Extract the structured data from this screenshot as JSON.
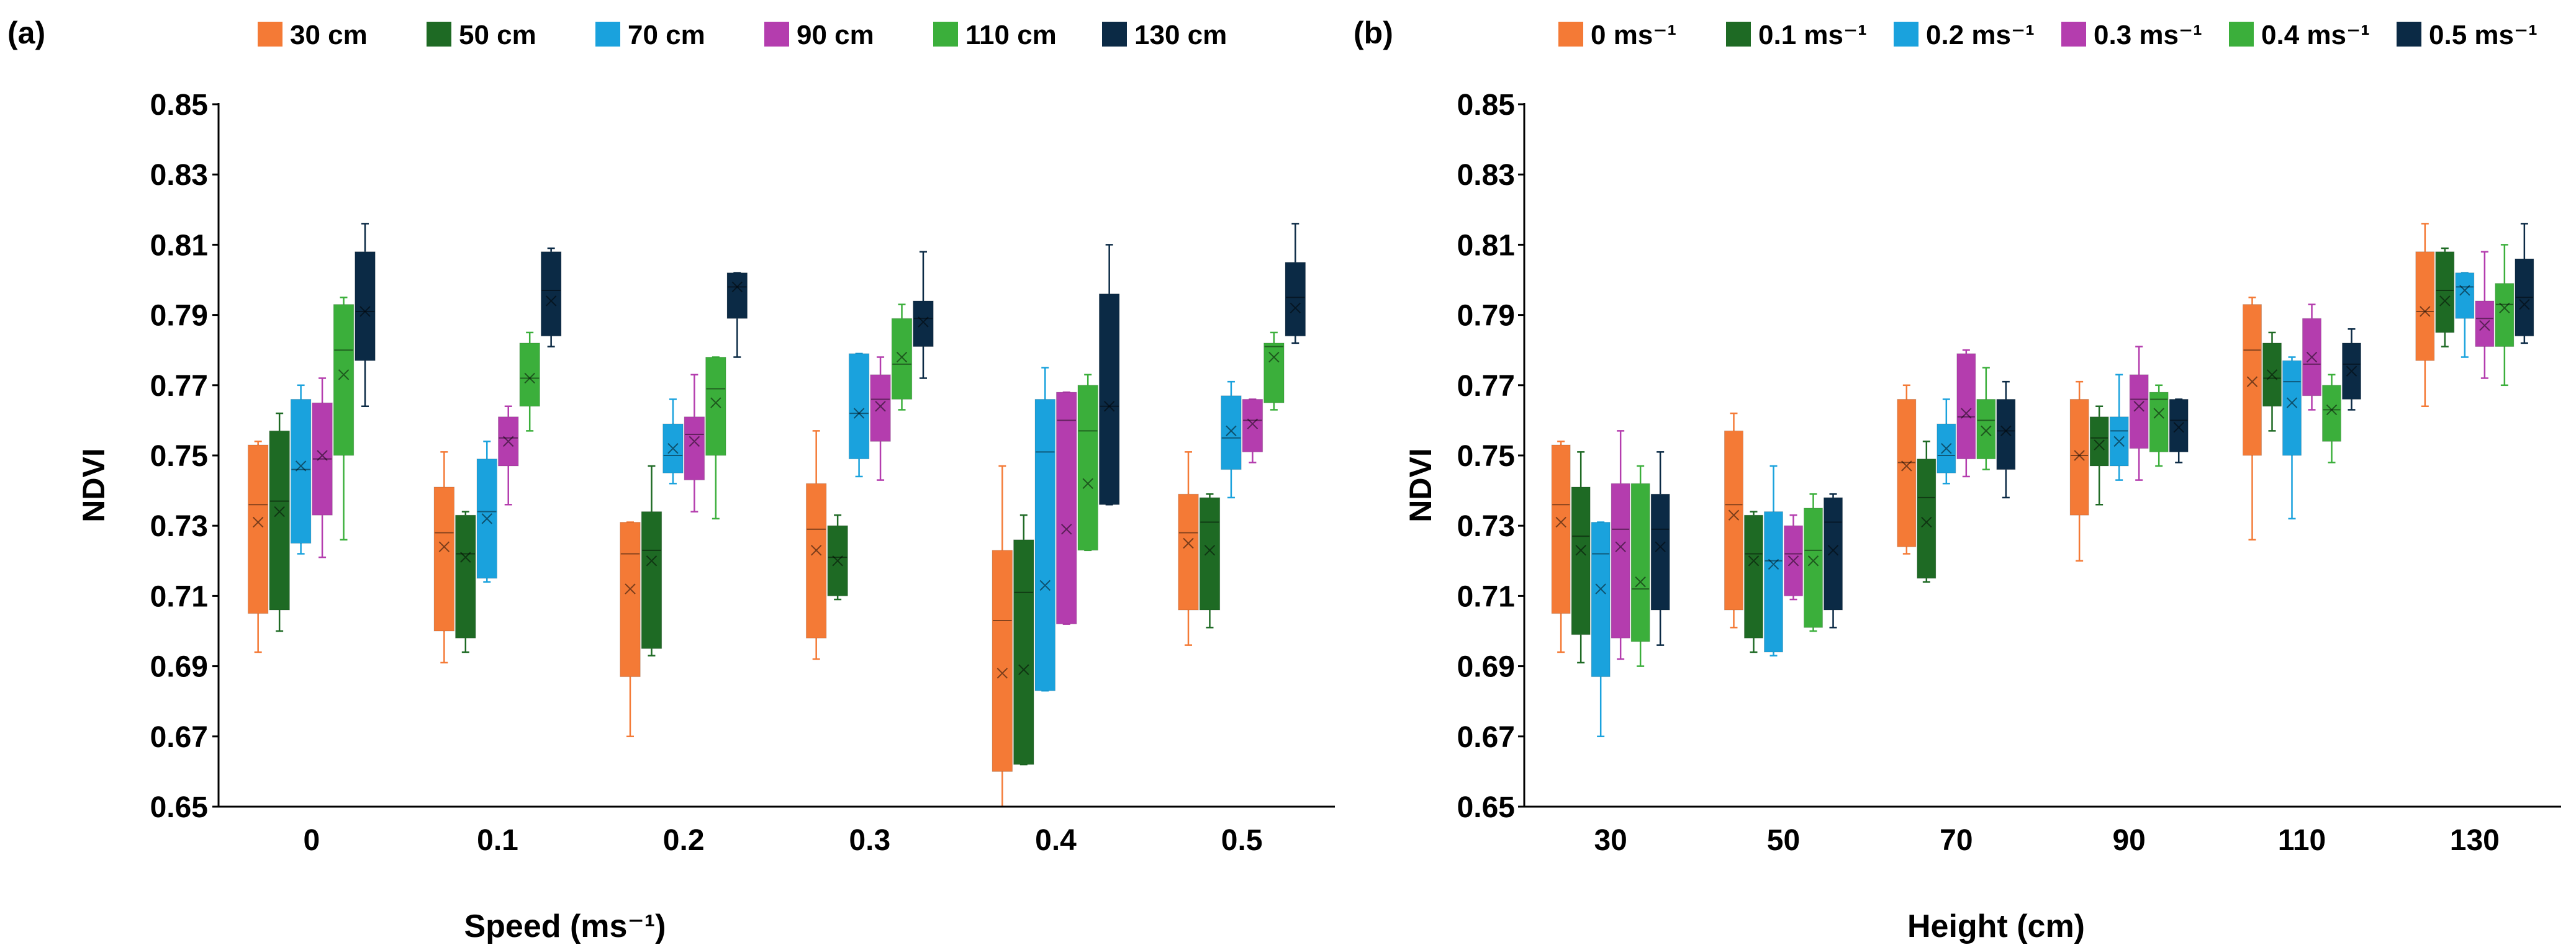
{
  "chart_data": [
    {
      "panel_label": "(a)",
      "type": "box",
      "xlabel": "Speed (ms⁻¹)",
      "ylabel": "NDVI",
      "ylim": [
        0.65,
        0.85
      ],
      "yticks": [
        "0.65",
        "0.67",
        "0.69",
        "0.71",
        "0.73",
        "0.75",
        "0.77",
        "0.79",
        "0.81",
        "0.83",
        "0.85"
      ],
      "categories": [
        "0",
        "0.1",
        "0.2",
        "0.3",
        "0.4",
        "0.5"
      ],
      "legend_position": "top",
      "series": [
        {
          "name": "30 cm",
          "color": "#F47A36",
          "boxes": [
            {
              "min": 0.694,
              "q1": 0.705,
              "median": 0.736,
              "mean": 0.731,
              "q3": 0.753,
              "max": 0.754
            },
            {
              "min": 0.691,
              "q1": 0.7,
              "median": 0.728,
              "mean": 0.724,
              "q3": 0.741,
              "max": 0.751
            },
            {
              "min": 0.67,
              "q1": 0.687,
              "median": 0.722,
              "mean": 0.712,
              "q3": 0.731,
              "max": 0.731
            },
            {
              "min": 0.692,
              "q1": 0.698,
              "median": 0.729,
              "mean": 0.723,
              "q3": 0.742,
              "max": 0.757
            },
            {
              "min": 0.65,
              "q1": 0.66,
              "median": 0.703,
              "mean": 0.688,
              "q3": 0.723,
              "max": 0.747
            },
            {
              "min": 0.696,
              "q1": 0.706,
              "median": 0.728,
              "mean": 0.725,
              "q3": 0.739,
              "max": 0.751
            }
          ]
        },
        {
          "name": "50 cm",
          "color": "#1E6A24",
          "boxes": [
            {
              "min": 0.7,
              "q1": 0.706,
              "median": 0.737,
              "mean": 0.734,
              "q3": 0.757,
              "max": 0.762
            },
            {
              "min": 0.694,
              "q1": 0.698,
              "median": 0.722,
              "mean": 0.721,
              "q3": 0.733,
              "max": 0.734
            },
            {
              "min": 0.693,
              "q1": 0.695,
              "median": 0.723,
              "mean": 0.72,
              "q3": 0.734,
              "max": 0.747
            },
            {
              "min": 0.709,
              "q1": 0.71,
              "median": 0.721,
              "mean": 0.72,
              "q3": 0.73,
              "max": 0.733
            },
            {
              "min": 0.662,
              "q1": 0.662,
              "median": 0.711,
              "mean": 0.689,
              "q3": 0.726,
              "max": 0.733
            },
            {
              "min": 0.701,
              "q1": 0.706,
              "median": 0.731,
              "mean": 0.723,
              "q3": 0.738,
              "max": 0.739
            }
          ]
        },
        {
          "name": "70 cm",
          "color": "#1AA2DD",
          "boxes": [
            {
              "min": 0.722,
              "q1": 0.725,
              "median": 0.746,
              "mean": 0.747,
              "q3": 0.766,
              "max": 0.77
            },
            {
              "min": 0.714,
              "q1": 0.715,
              "median": 0.734,
              "mean": 0.732,
              "q3": 0.749,
              "max": 0.754
            },
            {
              "min": 0.742,
              "q1": 0.745,
              "median": 0.75,
              "mean": 0.752,
              "q3": 0.759,
              "max": 0.766
            },
            {
              "min": 0.744,
              "q1": 0.749,
              "median": 0.762,
              "mean": 0.762,
              "q3": 0.779,
              "max": 0.779
            },
            {
              "min": 0.683,
              "q1": 0.683,
              "median": 0.751,
              "mean": 0.713,
              "q3": 0.766,
              "max": 0.775
            },
            {
              "min": 0.738,
              "q1": 0.746,
              "median": 0.755,
              "mean": 0.757,
              "q3": 0.767,
              "max": 0.771
            }
          ]
        },
        {
          "name": "90 cm",
          "color": "#B43DAE",
          "boxes": [
            {
              "min": 0.721,
              "q1": 0.733,
              "median": 0.749,
              "mean": 0.75,
              "q3": 0.765,
              "max": 0.772
            },
            {
              "min": 0.736,
              "q1": 0.747,
              "median": 0.755,
              "mean": 0.754,
              "q3": 0.761,
              "max": 0.764
            },
            {
              "min": 0.734,
              "q1": 0.743,
              "median": 0.756,
              "mean": 0.754,
              "q3": 0.761,
              "max": 0.773
            },
            {
              "min": 0.743,
              "q1": 0.754,
              "median": 0.766,
              "mean": 0.764,
              "q3": 0.773,
              "max": 0.778
            },
            {
              "min": 0.702,
              "q1": 0.702,
              "median": 0.76,
              "mean": 0.729,
              "q3": 0.768,
              "max": 0.768
            },
            {
              "min": 0.748,
              "q1": 0.751,
              "median": 0.76,
              "mean": 0.759,
              "q3": 0.766,
              "max": 0.766
            }
          ]
        },
        {
          "name": "110 cm",
          "color": "#3BAF3B",
          "boxes": [
            {
              "min": 0.726,
              "q1": 0.75,
              "median": 0.78,
              "mean": 0.773,
              "q3": 0.793,
              "max": 0.795
            },
            {
              "min": 0.757,
              "q1": 0.764,
              "median": 0.772,
              "mean": 0.772,
              "q3": 0.782,
              "max": 0.785
            },
            {
              "min": 0.732,
              "q1": 0.75,
              "median": 0.769,
              "mean": 0.765,
              "q3": 0.778,
              "max": 0.778
            },
            {
              "min": 0.763,
              "q1": 0.766,
              "median": 0.776,
              "mean": 0.778,
              "q3": 0.789,
              "max": 0.793
            },
            {
              "min": 0.723,
              "q1": 0.723,
              "median": 0.757,
              "mean": 0.742,
              "q3": 0.77,
              "max": 0.773
            },
            {
              "min": 0.763,
              "q1": 0.765,
              "median": 0.781,
              "mean": 0.778,
              "q3": 0.782,
              "max": 0.785
            }
          ]
        },
        {
          "name": "130 cm",
          "color": "#0B2A45",
          "boxes": [
            {
              "min": 0.764,
              "q1": 0.777,
              "median": 0.791,
              "mean": 0.791,
              "q3": 0.808,
              "max": 0.816
            },
            {
              "min": 0.781,
              "q1": 0.784,
              "median": 0.797,
              "mean": 0.794,
              "q3": 0.808,
              "max": 0.809
            },
            {
              "min": 0.778,
              "q1": 0.789,
              "median": 0.798,
              "mean": 0.798,
              "q3": 0.802,
              "max": 0.802
            },
            {
              "min": 0.772,
              "q1": 0.781,
              "median": 0.789,
              "mean": 0.788,
              "q3": 0.794,
              "max": 0.808
            },
            {
              "min": 0.736,
              "q1": 0.736,
              "median": 0.764,
              "mean": 0.764,
              "q3": 0.796,
              "max": 0.81
            },
            {
              "min": 0.782,
              "q1": 0.784,
              "median": 0.795,
              "mean": 0.792,
              "q3": 0.805,
              "max": 0.816
            }
          ]
        }
      ]
    },
    {
      "panel_label": "(b)",
      "type": "box",
      "xlabel": "Height (cm)",
      "ylabel": "NDVI",
      "ylim": [
        0.65,
        0.85
      ],
      "yticks": [
        "0.65",
        "0.67",
        "0.69",
        "0.71",
        "0.73",
        "0.75",
        "0.77",
        "0.79",
        "0.81",
        "0.83",
        "0.85"
      ],
      "categories": [
        "30",
        "50",
        "70",
        "90",
        "110",
        "130"
      ],
      "legend_position": "top",
      "series": [
        {
          "name": "0 ms⁻¹",
          "color": "#F47A36",
          "boxes": [
            {
              "min": 0.694,
              "q1": 0.705,
              "median": 0.736,
              "mean": 0.731,
              "q3": 0.753,
              "max": 0.754
            },
            {
              "min": 0.701,
              "q1": 0.706,
              "median": 0.736,
              "mean": 0.733,
              "q3": 0.757,
              "max": 0.762
            },
            {
              "min": 0.722,
              "q1": 0.724,
              "median": 0.748,
              "mean": 0.747,
              "q3": 0.766,
              "max": 0.77
            },
            {
              "min": 0.72,
              "q1": 0.733,
              "median": 0.75,
              "mean": 0.75,
              "q3": 0.766,
              "max": 0.771
            },
            {
              "min": 0.726,
              "q1": 0.75,
              "median": 0.78,
              "mean": 0.771,
              "q3": 0.793,
              "max": 0.795
            },
            {
              "min": 0.764,
              "q1": 0.777,
              "median": 0.791,
              "mean": 0.791,
              "q3": 0.808,
              "max": 0.816
            }
          ]
        },
        {
          "name": "0.1 ms⁻¹",
          "color": "#1E6A24",
          "boxes": [
            {
              "min": 0.691,
              "q1": 0.699,
              "median": 0.727,
              "mean": 0.723,
              "q3": 0.741,
              "max": 0.751
            },
            {
              "min": 0.694,
              "q1": 0.698,
              "median": 0.722,
              "mean": 0.72,
              "q3": 0.733,
              "max": 0.734
            },
            {
              "min": 0.714,
              "q1": 0.715,
              "median": 0.738,
              "mean": 0.731,
              "q3": 0.749,
              "max": 0.754
            },
            {
              "min": 0.736,
              "q1": 0.747,
              "median": 0.755,
              "mean": 0.753,
              "q3": 0.761,
              "max": 0.764
            },
            {
              "min": 0.757,
              "q1": 0.764,
              "median": 0.772,
              "mean": 0.773,
              "q3": 0.782,
              "max": 0.785
            },
            {
              "min": 0.781,
              "q1": 0.785,
              "median": 0.797,
              "mean": 0.794,
              "q3": 0.808,
              "max": 0.809
            }
          ]
        },
        {
          "name": "0.2 ms⁻¹",
          "color": "#1AA2DD",
          "boxes": [
            {
              "min": 0.67,
              "q1": 0.687,
              "median": 0.722,
              "mean": 0.712,
              "q3": 0.731,
              "max": 0.731
            },
            {
              "min": 0.693,
              "q1": 0.694,
              "median": 0.72,
              "mean": 0.719,
              "q3": 0.734,
              "max": 0.747
            },
            {
              "min": 0.742,
              "q1": 0.745,
              "median": 0.75,
              "mean": 0.752,
              "q3": 0.759,
              "max": 0.766
            },
            {
              "min": 0.743,
              "q1": 0.747,
              "median": 0.757,
              "mean": 0.754,
              "q3": 0.761,
              "max": 0.773
            },
            {
              "min": 0.732,
              "q1": 0.75,
              "median": 0.771,
              "mean": 0.765,
              "q3": 0.777,
              "max": 0.778
            },
            {
              "min": 0.778,
              "q1": 0.789,
              "median": 0.798,
              "mean": 0.797,
              "q3": 0.802,
              "max": 0.802
            }
          ]
        },
        {
          "name": "0.3 ms⁻¹",
          "color": "#B43DAE",
          "boxes": [
            {
              "min": 0.692,
              "q1": 0.698,
              "median": 0.729,
              "mean": 0.724,
              "q3": 0.742,
              "max": 0.757
            },
            {
              "min": 0.709,
              "q1": 0.71,
              "median": 0.722,
              "mean": 0.72,
              "q3": 0.73,
              "max": 0.733
            },
            {
              "min": 0.744,
              "q1": 0.749,
              "median": 0.761,
              "mean": 0.762,
              "q3": 0.779,
              "max": 0.78
            },
            {
              "min": 0.743,
              "q1": 0.752,
              "median": 0.766,
              "mean": 0.764,
              "q3": 0.773,
              "max": 0.781
            },
            {
              "min": 0.763,
              "q1": 0.767,
              "median": 0.776,
              "mean": 0.778,
              "q3": 0.789,
              "max": 0.793
            },
            {
              "min": 0.772,
              "q1": 0.781,
              "median": 0.789,
              "mean": 0.787,
              "q3": 0.794,
              "max": 0.808
            }
          ]
        },
        {
          "name": "0.4 ms⁻¹",
          "color": "#3BAF3B",
          "boxes": [
            {
              "min": 0.69,
              "q1": 0.697,
              "median": 0.712,
              "mean": 0.714,
              "q3": 0.742,
              "max": 0.747
            },
            {
              "min": 0.7,
              "q1": 0.701,
              "median": 0.723,
              "mean": 0.72,
              "q3": 0.735,
              "max": 0.739
            },
            {
              "min": 0.746,
              "q1": 0.749,
              "median": 0.76,
              "mean": 0.757,
              "q3": 0.766,
              "max": 0.775
            },
            {
              "min": 0.747,
              "q1": 0.751,
              "median": 0.766,
              "mean": 0.762,
              "q3": 0.768,
              "max": 0.77
            },
            {
              "min": 0.748,
              "q1": 0.754,
              "median": 0.763,
              "mean": 0.763,
              "q3": 0.77,
              "max": 0.773
            },
            {
              "min": 0.77,
              "q1": 0.781,
              "median": 0.793,
              "mean": 0.792,
              "q3": 0.799,
              "max": 0.81
            }
          ]
        },
        {
          "name": "0.5 ms⁻¹",
          "color": "#0B2A45",
          "boxes": [
            {
              "min": 0.696,
              "q1": 0.706,
              "median": 0.729,
              "mean": 0.724,
              "q3": 0.739,
              "max": 0.751
            },
            {
              "min": 0.701,
              "q1": 0.706,
              "median": 0.731,
              "mean": 0.723,
              "q3": 0.738,
              "max": 0.739
            },
            {
              "min": 0.738,
              "q1": 0.746,
              "median": 0.757,
              "mean": 0.757,
              "q3": 0.766,
              "max": 0.771
            },
            {
              "min": 0.748,
              "q1": 0.751,
              "median": 0.76,
              "mean": 0.758,
              "q3": 0.766,
              "max": 0.766
            },
            {
              "min": 0.763,
              "q1": 0.766,
              "median": 0.776,
              "mean": 0.774,
              "q3": 0.782,
              "max": 0.786
            },
            {
              "min": 0.782,
              "q1": 0.784,
              "median": 0.795,
              "mean": 0.793,
              "q3": 0.806,
              "max": 0.816
            }
          ]
        }
      ]
    }
  ]
}
